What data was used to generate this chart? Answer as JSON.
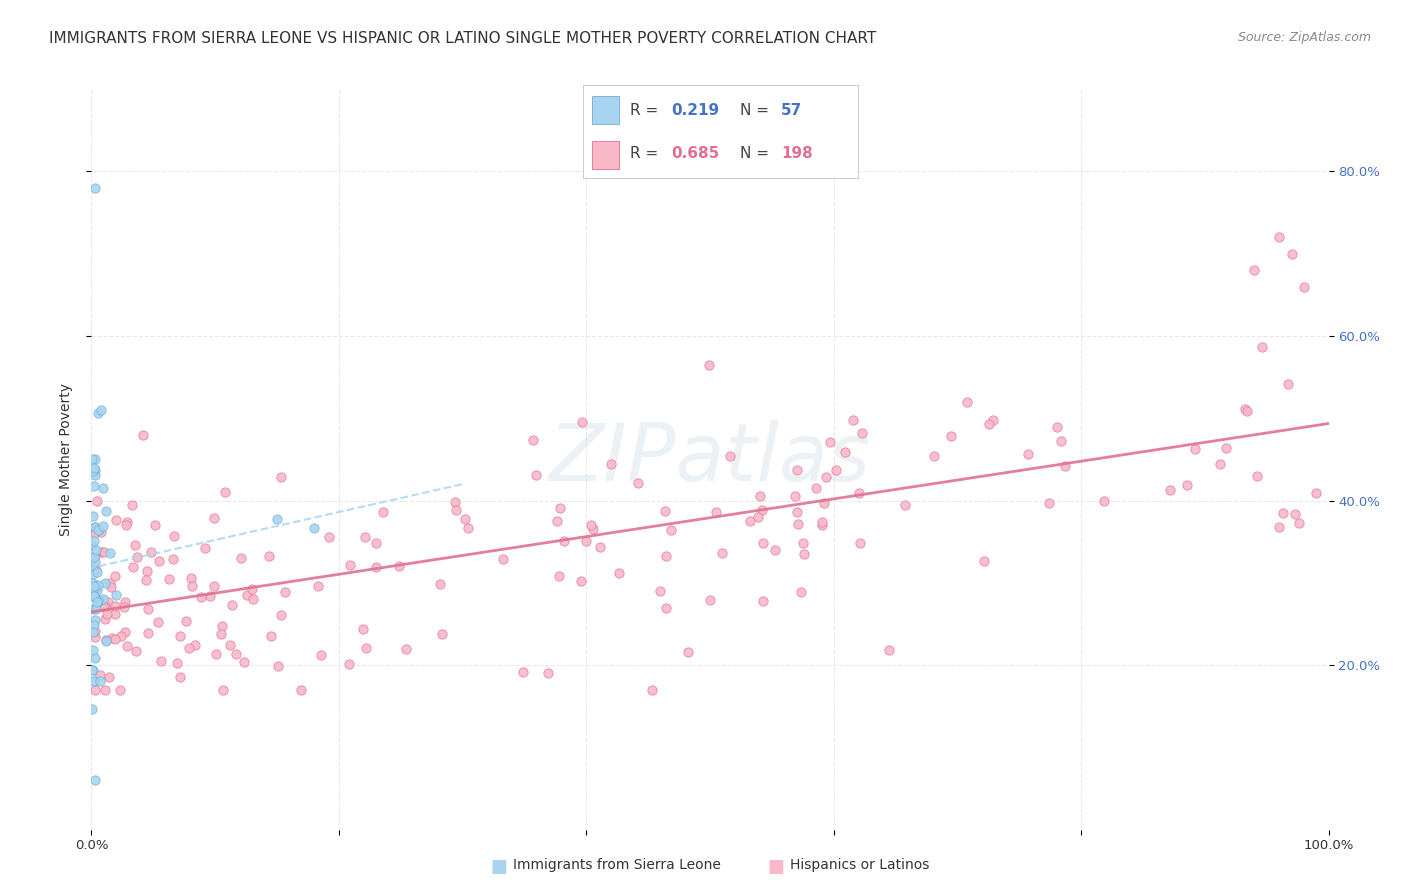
{
  "title": "IMMIGRANTS FROM SIERRA LEONE VS HISPANIC OR LATINO SINGLE MOTHER POVERTY CORRELATION CHART",
  "source": "Source: ZipAtlas.com",
  "ylabel": "Single Mother Poverty",
  "x_min": 0.0,
  "x_max": 1.0,
  "y_min": 0.0,
  "y_max": 0.9,
  "sierra_leone_R": 0.219,
  "sierra_leone_N": 57,
  "hispanic_R": 0.685,
  "hispanic_N": 198,
  "sierra_leone_color": "#a8d4f0",
  "sierra_leone_edge": "#6aaed6",
  "hispanic_color": "#f9b8c8",
  "hispanic_edge": "#e07090",
  "trendline_sierra_color": "#a8d4f0",
  "trendline_hispanic_color": "#e07090",
  "legend_R_color_sierra": "#4472c4",
  "legend_R_color_hispanic": "#e07090",
  "background_color": "#ffffff",
  "grid_color": "#e8e8e8",
  "tick_label_color_right": "#4472c4",
  "title_fontsize": 11,
  "axis_label_fontsize": 10,
  "tick_fontsize": 9.5,
  "watermark_color": "#d0dce8",
  "watermark_alpha": 0.4
}
